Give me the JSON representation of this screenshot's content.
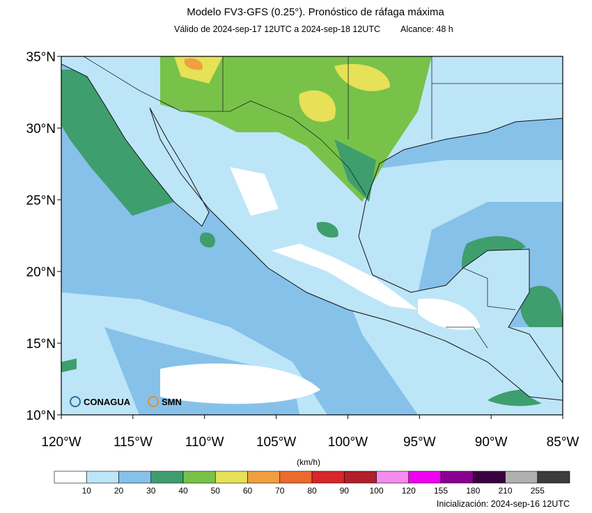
{
  "header": {
    "title": "Modelo FV3-GFS (0.25°). Pronóstico de ráfaga máxima",
    "subtitle": "Válido de 2024-sep-17 12UTC a 2024-sep-18 12UTC",
    "range": "Alcance: 48 h"
  },
  "map": {
    "lat_labels": [
      "35°N",
      "30°N",
      "25°N",
      "20°N",
      "15°N",
      "10°N"
    ],
    "lon_labels": [
      "120°W",
      "115°W",
      "110°W",
      "105°W",
      "100°W",
      "95°W",
      "90°W",
      "85°W"
    ],
    "logos": [
      "CONAGUA",
      "SMN"
    ]
  },
  "colorbar": {
    "unit": "(km/h)",
    "colors": [
      "#ffffff",
      "#bde5f8",
      "#86c1ea",
      "#3f9e6e",
      "#78c24a",
      "#e6e156",
      "#f0a040",
      "#ec6a2c",
      "#d8262a",
      "#b0202a",
      "#f58cf0",
      "#f000f0",
      "#8a0090",
      "#3c0040",
      "#b0b0b0",
      "#3c3c3c"
    ],
    "labels": [
      10,
      20,
      30,
      40,
      50,
      60,
      70,
      80,
      90,
      100,
      120,
      155,
      180,
      210,
      255
    ]
  },
  "footer": "Inicialización: 2024-sep-16 12UTC"
}
